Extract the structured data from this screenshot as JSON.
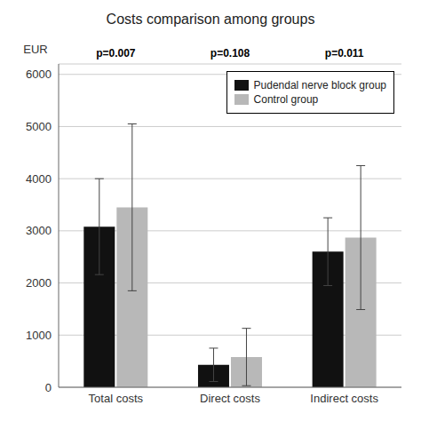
{
  "chart_data": {
    "type": "bar",
    "title": "Costs comparison among groups",
    "ylabel": "EUR",
    "categories": [
      "Total costs",
      "Direct costs",
      "Indirect costs"
    ],
    "series": [
      {
        "name": "Pudendal nerve block group",
        "color": "#111111",
        "values": [
          3080,
          430,
          2600
        ],
        "errors": [
          920,
          320,
          650
        ]
      },
      {
        "name": "Control group",
        "color": "#b8b8b8",
        "values": [
          3450,
          580,
          2870
        ],
        "errors": [
          1600,
          550,
          1380
        ]
      }
    ],
    "annotations": [
      "p=0.007",
      "p=0.108",
      "p=0.011"
    ],
    "ylim": [
      0,
      6200
    ],
    "yticks": [
      0,
      1000,
      2000,
      3000,
      4000,
      5000,
      6000
    ],
    "grid": true,
    "legend": "upper right"
  }
}
